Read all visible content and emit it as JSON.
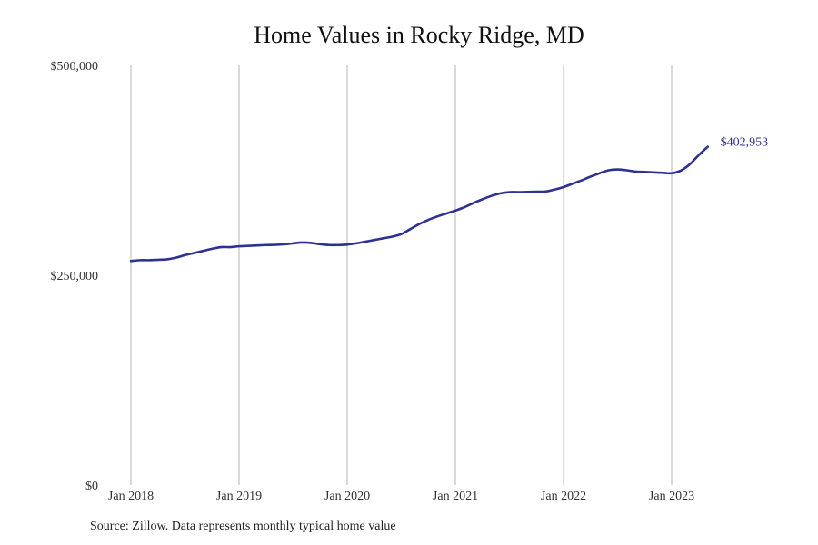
{
  "chart_data": {
    "type": "line",
    "title": "Home Values in Rocky Ridge, MD",
    "xlabel": "",
    "ylabel": "",
    "ylim": [
      0,
      500000
    ],
    "xlim": [
      "2018-01",
      "2024-06"
    ],
    "y_ticks": [
      {
        "value": 0,
        "label": "$0"
      },
      {
        "value": 250000,
        "label": "$250,000"
      },
      {
        "value": 500000,
        "label": "$500,000"
      }
    ],
    "x_ticks": [
      {
        "value": "2018-01",
        "label": "Jan 2018"
      },
      {
        "value": "2019-01",
        "label": "Jan 2019"
      },
      {
        "value": "2020-01",
        "label": "Jan 2020"
      },
      {
        "value": "2021-01",
        "label": "Jan 2021"
      },
      {
        "value": "2022-01",
        "label": "Jan 2022"
      },
      {
        "value": "2023-01",
        "label": "Jan 2023"
      }
    ],
    "grid": "vertical",
    "legend": "none",
    "color": "#2e3192",
    "end_label": "$402,953",
    "series": [
      {
        "x": [
          "2018-01",
          "2018-02",
          "2018-03",
          "2018-04",
          "2018-05",
          "2018-06",
          "2018-07",
          "2018-08",
          "2018-09",
          "2018-10",
          "2018-11",
          "2018-12",
          "2019-01",
          "2019-02",
          "2019-03",
          "2019-04",
          "2019-05",
          "2019-06",
          "2019-07",
          "2019-08",
          "2019-09",
          "2019-10",
          "2019-11",
          "2019-12",
          "2020-01",
          "2020-02",
          "2020-03",
          "2020-04",
          "2020-05",
          "2020-06",
          "2020-07",
          "2020-08",
          "2020-09",
          "2020-10",
          "2020-11",
          "2020-12",
          "2021-01",
          "2021-02",
          "2021-03",
          "2021-04",
          "2021-05",
          "2021-06",
          "2021-07",
          "2021-08",
          "2021-09",
          "2021-10",
          "2021-11",
          "2021-12",
          "2022-01",
          "2022-02",
          "2022-03",
          "2022-04",
          "2022-05",
          "2022-06",
          "2022-07",
          "2022-08",
          "2022-09",
          "2022-10",
          "2022-11",
          "2022-12",
          "2023-01",
          "2023-02",
          "2023-03",
          "2023-04",
          "2023-05"
        ],
        "values": [
          267000,
          268000,
          268000,
          268500,
          269000,
          271000,
          274000,
          276500,
          279000,
          281500,
          283500,
          283500,
          284500,
          285000,
          285500,
          286000,
          286200,
          286800,
          288000,
          289000,
          288500,
          287000,
          286000,
          286000,
          286500,
          288000,
          290000,
          292000,
          294000,
          296000,
          299000,
          305000,
          311000,
          316000,
          320000,
          323500,
          327000,
          331000,
          336000,
          340500,
          344500,
          347500,
          349000,
          349000,
          349300,
          349500,
          349800,
          352000,
          355000,
          359000,
          363000,
          367500,
          371500,
          375000,
          376000,
          375000,
          373500,
          373000,
          372500,
          372000,
          371500,
          374500,
          382000,
          393000,
          402953
        ]
      }
    ]
  },
  "footer": {
    "source": "Source: Zillow. Data represents monthly typical home value"
  }
}
